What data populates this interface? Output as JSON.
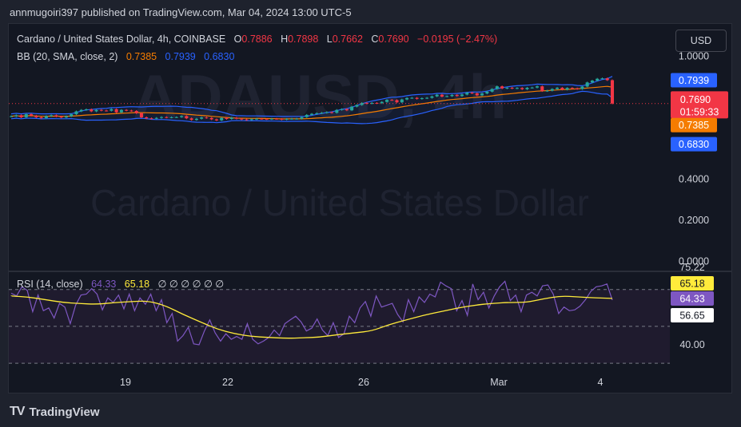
{
  "header": {
    "published": "annmugoiri397 published on TradingView.com, Mar 04, 2024 13:00 UTC-5"
  },
  "legend": {
    "symbol": "Cardano / United States Dollar, 4h, COINBASE",
    "o_label": "O",
    "o": "0.7886",
    "h_label": "H",
    "h": "0.7898",
    "l_label": "L",
    "l": "0.7662",
    "c_label": "C",
    "c": "0.7690",
    "change": "−0.0195 (−2.47%)",
    "bb_label": "BB (20, SMA, close, 2)",
    "bb_basis": "0.7385",
    "bb_upper": "0.7939",
    "bb_lower": "0.6830"
  },
  "rsi_legend": {
    "label": "RSI (14, close)",
    "rsi": "64.33",
    "ma": "65.18",
    "extras": "∅ ∅ ∅ ∅ ∅ ∅"
  },
  "currency_button": "USD",
  "watermark": {
    "ticker": "ADAUSD, 4h",
    "name": "Cardano / United States Dollar"
  },
  "price_axis": {
    "ticks": [
      "1.0000",
      "0.4000",
      "0.2000",
      "0.0000"
    ]
  },
  "rsi_axis": {
    "ticks": [
      "40.00"
    ],
    "top_partial": "75.22",
    "level_56": "56.65"
  },
  "price_tags": {
    "upper": {
      "text": "0.7939",
      "color": "#2962ff"
    },
    "close": {
      "text": "0.7690",
      "color": "#f23645"
    },
    "countdown": "01:59:33",
    "basis": {
      "text": "0.7385",
      "color": "#f57c00"
    },
    "lower": {
      "text": "0.6830",
      "color": "#2962ff"
    }
  },
  "rsi_tags": {
    "ma": {
      "text": "65.18",
      "color": "#ffeb3b"
    },
    "rsi": {
      "text": "64.33",
      "color": "#7e57c2"
    }
  },
  "x_axis": {
    "labels": [
      "19",
      "22",
      "26",
      "Mar",
      "4"
    ]
  },
  "brand": "TradingView",
  "colors": {
    "up": "#26a69a",
    "down": "#f23645",
    "bb_basis": "#f57c00",
    "bb_band": "#2962ff",
    "rsi": "#7e57c2",
    "rsi_ma": "#ffeb3b"
  },
  "chart_data": [
    {
      "type": "candlestick",
      "title": "Cardano / United States Dollar, 4h, COINBASE",
      "ylim": [
        -0.03,
        1.06
      ],
      "x": [
        "19",
        "22",
        "26",
        "Mar",
        "4"
      ],
      "close_path": [
        0.707,
        0.712,
        0.702,
        0.717,
        0.71,
        0.702,
        0.698,
        0.708,
        0.712,
        0.706,
        0.701,
        0.707,
        0.717,
        0.731,
        0.738,
        0.741,
        0.731,
        0.738,
        0.735,
        0.734,
        0.742,
        0.726,
        0.738,
        0.735,
        0.733,
        0.722,
        0.702,
        0.697,
        0.696,
        0.699,
        0.703,
        0.701,
        0.702,
        0.703,
        0.708,
        0.697,
        0.689,
        0.695,
        0.701,
        0.699,
        0.692,
        0.687,
        0.699,
        0.694,
        0.7,
        0.695,
        0.692,
        0.689,
        0.693,
        0.695,
        0.694,
        0.693,
        0.695,
        0.694,
        0.691,
        0.694,
        0.695,
        0.695,
        0.703,
        0.714,
        0.719,
        0.722,
        0.724,
        0.727,
        0.724,
        0.738,
        0.742,
        0.736,
        0.754,
        0.762,
        0.772,
        0.769,
        0.772,
        0.771,
        0.777,
        0.787,
        0.786,
        0.775,
        0.789,
        0.796,
        0.797,
        0.792,
        0.795,
        0.797,
        0.804,
        0.812,
        0.803,
        0.805,
        0.811,
        0.806,
        0.813,
        0.822,
        0.819,
        0.809,
        0.818,
        0.827,
        0.84,
        0.853,
        0.843,
        0.846,
        0.843,
        0.845,
        0.839,
        0.846,
        0.847,
        0.853,
        0.83,
        0.832,
        0.84,
        0.846,
        0.837,
        0.845,
        0.843,
        0.84,
        0.852,
        0.872,
        0.881,
        0.89,
        0.892,
        0.883,
        0.769
      ],
      "bb_basis": 0.7385,
      "bb_upper": 0.7939,
      "bb_lower": 0.683,
      "last_close": 0.769
    },
    {
      "type": "line",
      "title": "RSI (14, close)",
      "ylim": [
        27,
        79
      ],
      "levels": [
        70,
        50,
        30
      ],
      "series": [
        {
          "name": "RSI (14, close)",
          "values": [
            68,
            66.5,
            71.5,
            69.5,
            58,
            67,
            58.5,
            60,
            54.5,
            62.5,
            60.5,
            51.5,
            61.5,
            67,
            67.5,
            70.5,
            67.5,
            59,
            65.5,
            63,
            67,
            59.5,
            67.5,
            58.5,
            65.5,
            62,
            67.5,
            58.5,
            64.5,
            52,
            57,
            42,
            45,
            49.5,
            40.5,
            40,
            47.5,
            53.5,
            46.5,
            42,
            46,
            43,
            44.5,
            43,
            51.5,
            43,
            40.5,
            42,
            44,
            48,
            45,
            51.5,
            53.5,
            55.5,
            52.5,
            47.5,
            49,
            54,
            48,
            45,
            52,
            44,
            46,
            55.5,
            52,
            60,
            63.5,
            55.5,
            66.5,
            60.5,
            61.5,
            62.5,
            56.5,
            52.5,
            64.5,
            58,
            66,
            63,
            67.5,
            66,
            74,
            72,
            70.5,
            58.5,
            64,
            56,
            73,
            64.5,
            68.5,
            60,
            66.5,
            71.5,
            74.5,
            64,
            67,
            58,
            67,
            68.5,
            66.5,
            72,
            72.5,
            67.5,
            57,
            60.5,
            58.5,
            59,
            61,
            64.5,
            69,
            71.5,
            72,
            73,
            64.33
          ]
        },
        {
          "name": "RSI-based MA",
          "values": [
            66.5,
            65.9,
            64.5,
            63,
            62.4,
            62,
            62.9,
            63.5,
            63.8,
            61.2,
            56.5,
            52.5,
            48.5,
            46,
            44.5,
            44,
            43.5,
            43.8,
            44.2,
            45.5,
            46.5,
            47.5,
            51,
            53.5,
            56,
            58,
            60,
            61.5,
            62.5,
            63,
            63,
            65,
            66.5,
            66,
            65.5,
            65.18
          ]
        }
      ]
    }
  ]
}
